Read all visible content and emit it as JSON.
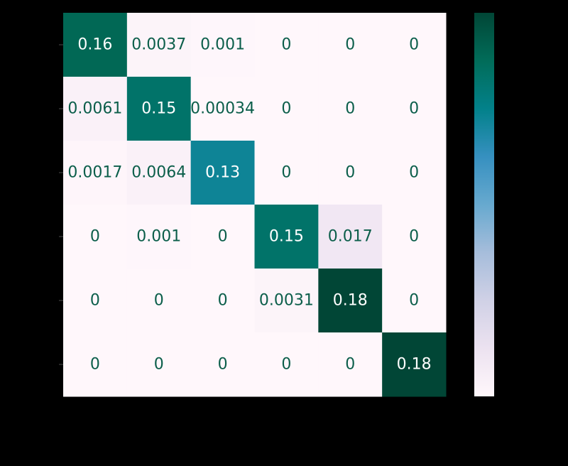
{
  "chart_data": {
    "type": "heatmap",
    "title": "",
    "xlabel": "",
    "ylabel": "",
    "x_tick_labels": [],
    "y_tick_labels": [],
    "rows": 6,
    "cols": 6,
    "matrix": [
      [
        0.16,
        0.0037,
        0.001,
        0,
        0,
        0
      ],
      [
        0.0061,
        0.15,
        0.00034,
        0,
        0,
        0
      ],
      [
        0.0017,
        0.0064,
        0.13,
        0,
        0,
        0
      ],
      [
        0,
        0.001,
        0,
        0.15,
        0.017,
        0
      ],
      [
        0,
        0,
        0,
        0.0031,
        0.18,
        0
      ],
      [
        0,
        0,
        0,
        0,
        0,
        0.18
      ]
    ],
    "cell_labels": [
      [
        "0.16",
        "0.0037",
        "0.001",
        "0",
        "0",
        "0"
      ],
      [
        "0.0061",
        "0.15",
        "0.00034",
        "0",
        "0",
        "0"
      ],
      [
        "0.0017",
        "0.0064",
        "0.13",
        "0",
        "0",
        "0"
      ],
      [
        "0",
        "0.001",
        "0",
        "0.15",
        "0.017",
        "0"
      ],
      [
        "0",
        "0",
        "0",
        "0.0031",
        "0.18",
        "0"
      ],
      [
        "0",
        "0",
        "0",
        "0",
        "0",
        "0.18"
      ]
    ],
    "value_range": [
      0,
      0.18
    ],
    "colormap": "PuBuGn",
    "colors": {
      "cmap_stops": [
        "#fff7fb",
        "#ece2f0",
        "#d0d1e6",
        "#a6bddb",
        "#67a9cf",
        "#3690c0",
        "#02818a",
        "#016c59",
        "#014636"
      ],
      "dark_text": "#0b5e4a",
      "light_text": "#ffffff",
      "background": "#000000"
    },
    "colorbar": {
      "visible": true,
      "placement": "right",
      "tick_labels": []
    },
    "grid": false,
    "legend": "none"
  }
}
